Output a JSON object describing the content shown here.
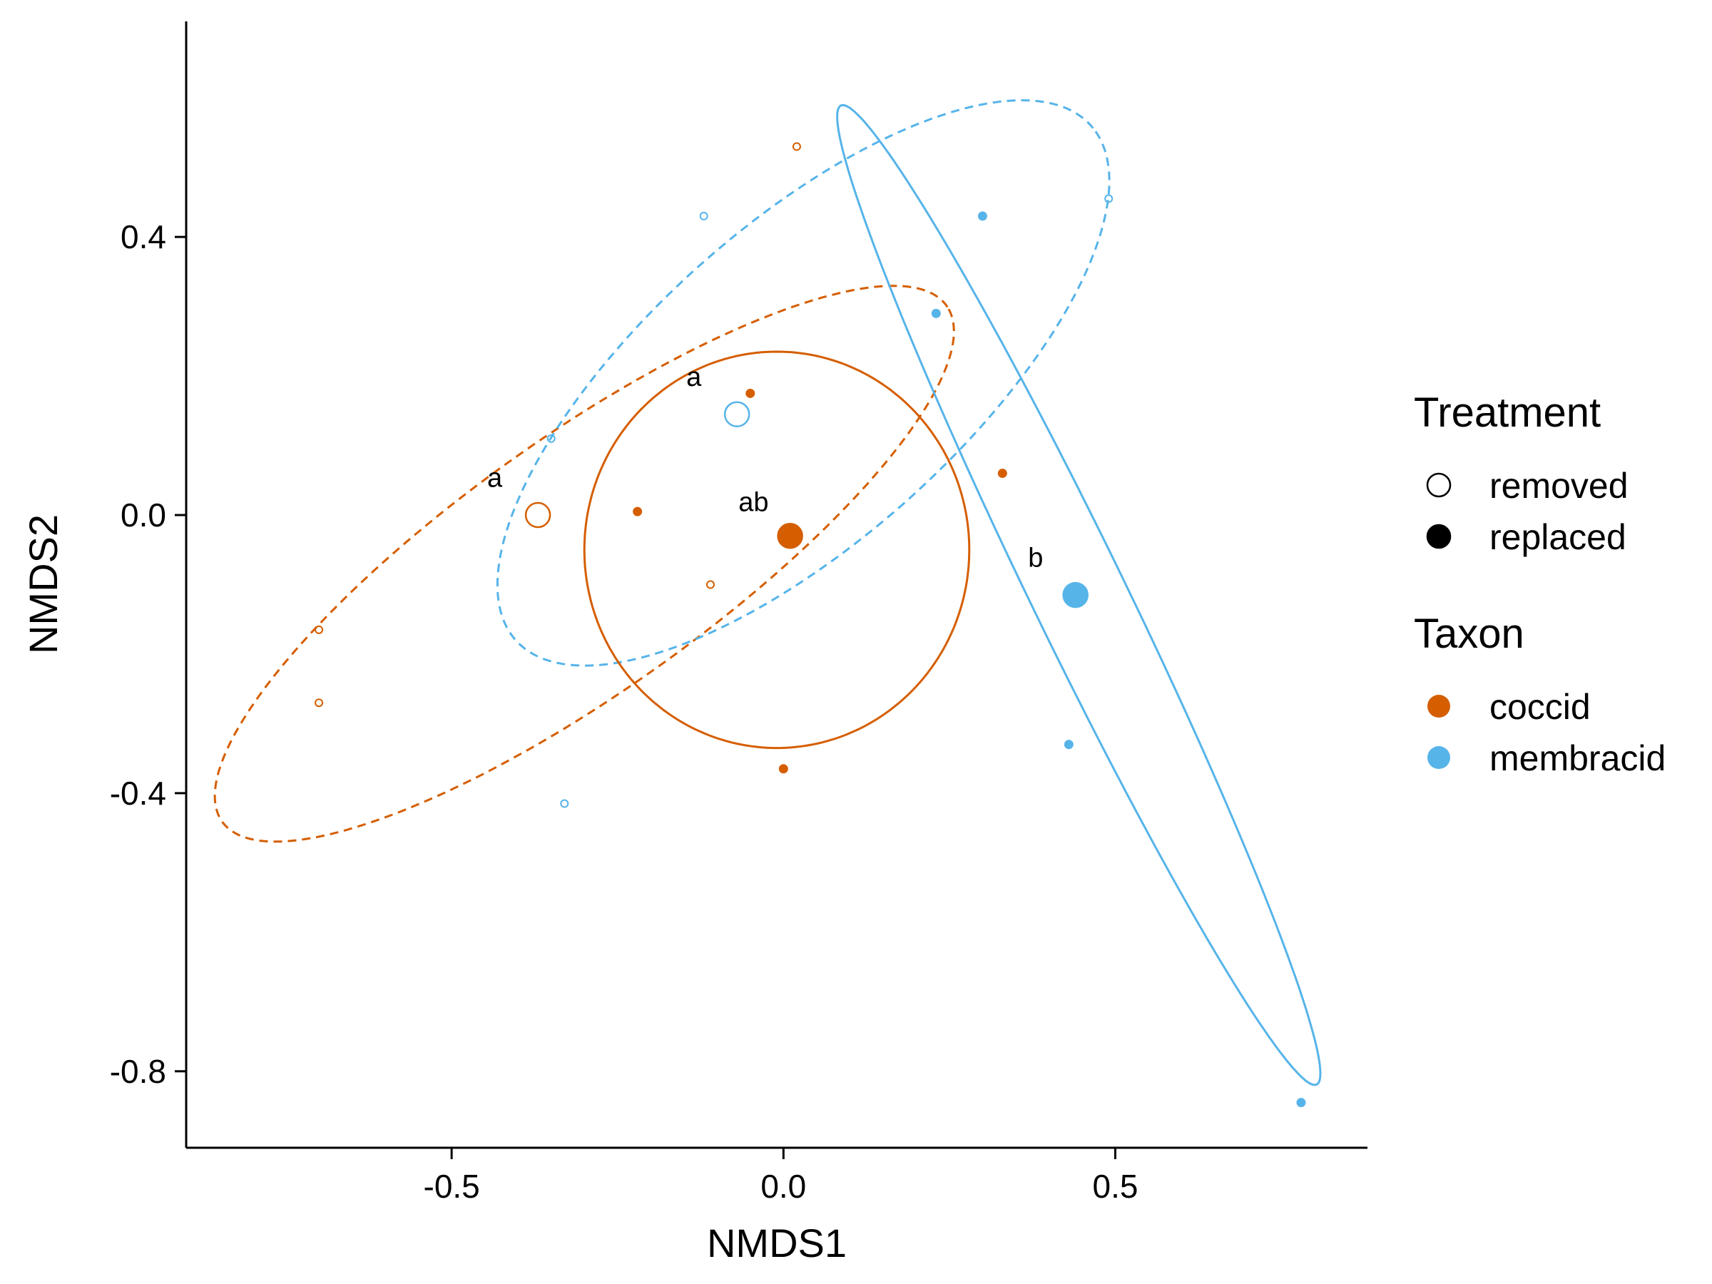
{
  "chart_data": {
    "type": "scatter",
    "xlabel": "NMDS1",
    "ylabel": "NMDS2",
    "xlim": [
      -0.9,
      0.88
    ],
    "ylim": [
      -0.91,
      0.71
    ],
    "x_ticks": [
      -0.5,
      0.0,
      0.5
    ],
    "y_ticks": [
      0.4,
      0.0,
      -0.4,
      -0.8
    ],
    "x_tick_labels": [
      "-0.5",
      "0.0",
      "0.5"
    ],
    "y_tick_labels": [
      "0.4",
      "0.0",
      "-0.4",
      "-0.8"
    ],
    "grid": false,
    "legend_position": "right",
    "colors": {
      "coccid": "#D55E00",
      "membracid": "#56B4E9",
      "legend_shape": "#000000"
    },
    "legend": {
      "treatment_title": "Treatment",
      "treatment_items": [
        {
          "label": "removed",
          "fill": false
        },
        {
          "label": "replaced",
          "fill": true
        }
      ],
      "taxon_title": "Taxon",
      "taxon_items": [
        {
          "label": "coccid",
          "taxon": "coccid"
        },
        {
          "label": "membracid",
          "taxon": "membracid"
        }
      ]
    },
    "points": [
      {
        "taxon": "coccid",
        "treatment": "removed",
        "x": 0.02,
        "y": 0.53
      },
      {
        "taxon": "coccid",
        "treatment": "removed",
        "x": -0.11,
        "y": -0.1
      },
      {
        "taxon": "coccid",
        "treatment": "removed",
        "x": -0.7,
        "y": -0.165
      },
      {
        "taxon": "coccid",
        "treatment": "removed",
        "x": -0.7,
        "y": -0.27
      },
      {
        "taxon": "coccid",
        "treatment": "replaced",
        "x": -0.05,
        "y": 0.175
      },
      {
        "taxon": "coccid",
        "treatment": "replaced",
        "x": -0.22,
        "y": 0.005
      },
      {
        "taxon": "coccid",
        "treatment": "replaced",
        "x": 0.33,
        "y": 0.06
      },
      {
        "taxon": "coccid",
        "treatment": "replaced",
        "x": 0.0,
        "y": -0.365
      },
      {
        "taxon": "membracid",
        "treatment": "removed",
        "x": -0.12,
        "y": 0.43
      },
      {
        "taxon": "membracid",
        "treatment": "removed",
        "x": -0.35,
        "y": 0.11
      },
      {
        "taxon": "membracid",
        "treatment": "removed",
        "x": -0.33,
        "y": -0.415
      },
      {
        "taxon": "membracid",
        "treatment": "removed",
        "x": 0.49,
        "y": 0.455
      },
      {
        "taxon": "membracid",
        "treatment": "replaced",
        "x": 0.3,
        "y": 0.43
      },
      {
        "taxon": "membracid",
        "treatment": "replaced",
        "x": 0.23,
        "y": 0.29
      },
      {
        "taxon": "membracid",
        "treatment": "replaced",
        "x": 0.43,
        "y": -0.33
      },
      {
        "taxon": "membracid",
        "treatment": "replaced",
        "x": 0.78,
        "y": -0.845
      }
    ],
    "centroids": [
      {
        "taxon": "coccid",
        "treatment": "removed",
        "x": -0.37,
        "y": 0.0
      },
      {
        "taxon": "coccid",
        "treatment": "replaced",
        "x": 0.01,
        "y": -0.03
      },
      {
        "taxon": "membracid",
        "treatment": "removed",
        "x": -0.07,
        "y": 0.145
      },
      {
        "taxon": "membracid",
        "treatment": "replaced",
        "x": 0.44,
        "y": -0.115
      }
    ],
    "ellipses": [
      {
        "taxon": "coccid",
        "treatment": "removed",
        "cx": -0.3,
        "cy": -0.07,
        "a": 0.66,
        "b": 0.185,
        "angle_deg": 34
      },
      {
        "taxon": "membracid",
        "treatment": "removed",
        "cx": 0.03,
        "cy": 0.19,
        "a": 0.57,
        "b": 0.23,
        "angle_deg": 40
      },
      {
        "taxon": "coccid",
        "treatment": "replaced",
        "cx": -0.01,
        "cy": -0.05,
        "a": 0.29,
        "b": 0.285,
        "angle_deg": 0
      },
      {
        "taxon": "membracid",
        "treatment": "replaced",
        "cx": 0.445,
        "cy": -0.115,
        "a": 0.79,
        "b": 0.07,
        "angle_deg": -63
      }
    ],
    "annotations": [
      {
        "text": "a",
        "x": -0.435,
        "y": 0.055
      },
      {
        "text": "a",
        "x": -0.135,
        "y": 0.2
      },
      {
        "text": "ab",
        "x": -0.045,
        "y": 0.02
      },
      {
        "text": "b",
        "x": 0.38,
        "y": -0.06
      }
    ]
  }
}
